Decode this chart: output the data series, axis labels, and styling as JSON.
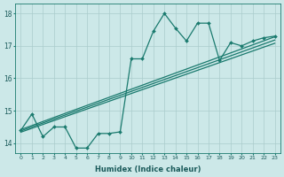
{
  "xlabel": "Humidex (Indice chaleur)",
  "background_color": "#cce8e8",
  "grid_color": "#aacccc",
  "line_color": "#1a7a6e",
  "xlim": [
    -0.5,
    23.5
  ],
  "ylim": [
    13.7,
    18.3
  ],
  "yticks": [
    14,
    15,
    16,
    17,
    18
  ],
  "xticks": [
    0,
    1,
    2,
    3,
    4,
    5,
    6,
    7,
    8,
    9,
    10,
    11,
    12,
    13,
    14,
    15,
    16,
    17,
    18,
    19,
    20,
    21,
    22,
    23
  ],
  "zigzag": [
    14.4,
    14.9,
    14.2,
    14.5,
    14.5,
    13.85,
    13.85,
    14.3,
    14.3,
    14.35,
    16.6,
    16.6,
    17.45,
    18.0,
    17.55,
    17.15,
    17.7,
    17.7,
    16.55,
    17.1,
    17.0,
    17.15,
    17.25,
    17.3
  ],
  "regression_lines": [
    {
      "x0": 0,
      "y0": 14.42,
      "x1": 23,
      "y1": 17.28
    },
    {
      "x0": 0,
      "y0": 14.38,
      "x1": 23,
      "y1": 17.18
    },
    {
      "x0": 0,
      "y0": 14.34,
      "x1": 23,
      "y1": 17.08
    }
  ]
}
